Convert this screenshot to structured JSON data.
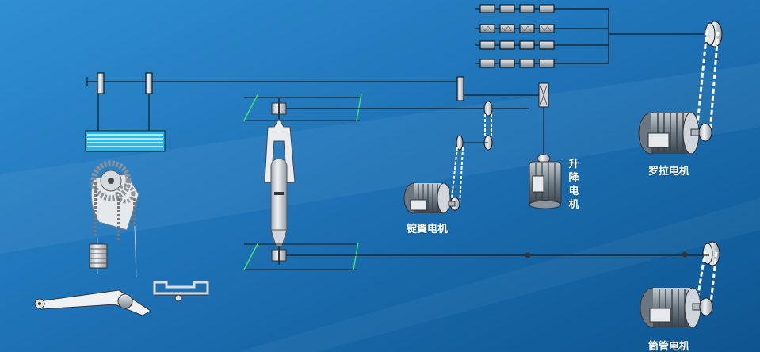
{
  "labels": {
    "spindle_motor": "锭翼电机",
    "lift_motor": "升降电机",
    "roller_motor": "罗拉电机",
    "tube_motor": "筒管电机"
  },
  "colors": {
    "background_dark": "#0e5f9a",
    "background_light": "#3a9ad6",
    "line": "#1a1a1a",
    "label": "#ffffff",
    "cyan_plate": "#2fb6e8",
    "guide_green": "#40e070"
  },
  "icons": {
    "motors": "electric-motor-icon",
    "pulleys": "pulley-icon",
    "gears": "gear-icon"
  }
}
